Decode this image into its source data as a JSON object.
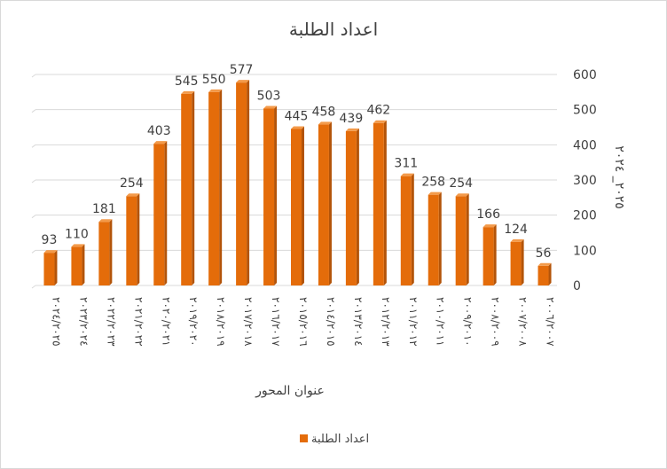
{
  "chart_data": {
    "type": "bar",
    "title": "اعداد الطلبة",
    "xlabel": "عنوان المحور",
    "ylabel": "٢٠٢٥_ ٢٠٢٤",
    "ylim": [
      0,
      600
    ],
    "yticks": [
      0,
      100,
      200,
      300,
      400,
      500,
      600
    ],
    "y_axis_position": "right",
    "grid": true,
    "legend_position": "bottom",
    "bar_color": "#E46C0A",
    "categories": [
      "٢٠٢٤/٢٠٢٥",
      "٢٠٢٣/٢٠٢٤",
      "٢٠٢٢/٢٠٢٣",
      "٢٠٢١/٢٠٢٢",
      "٢٠٢٠/٢٠٢١",
      "٢٠١٩/٢٠٢٠",
      "٢٠١٨/٢٠١٩",
      "٢٠١٧/٢٠١٨",
      "٢٠١٦/٢٠١٧",
      "٢٠١٥/٢٠١٦",
      "٢٠١٤/٢٠١٥",
      "٢٠١٣/٢٠١٤",
      "٢٠١٢/٢٠١٣",
      "٢٠١١/٢٠١٢",
      "٢٠١٠/٢٠١١",
      "٢٠٠٩/٢٠١٠",
      "٢٠٠٨/٢٠٠٩",
      "٢٠٠٧/٢٠٠٨",
      "٢٠٠٦/٢٠٠٧"
    ],
    "series": [
      {
        "name": "اعداد الطلبة",
        "values": [
          93,
          110,
          181,
          254,
          403,
          545,
          550,
          577,
          503,
          445,
          458,
          439,
          462,
          311,
          258,
          254,
          166,
          124,
          56
        ]
      }
    ]
  }
}
